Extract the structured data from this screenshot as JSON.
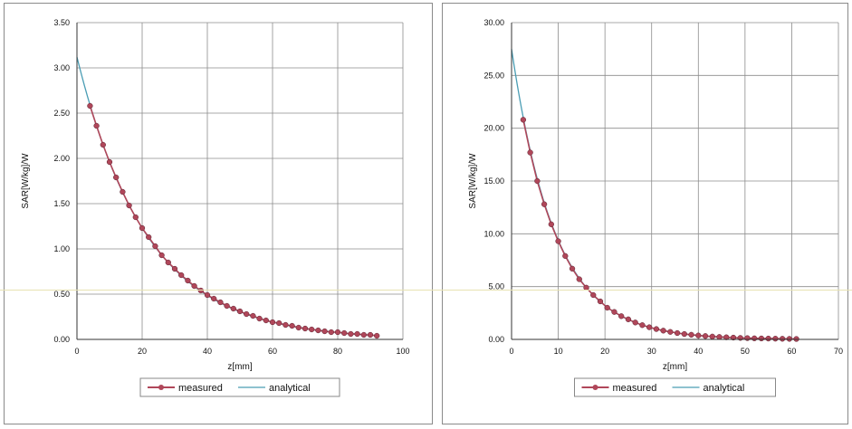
{
  "chart_data": [
    {
      "type": "line",
      "title": "",
      "xlabel": "z[mm]",
      "ylabel": "SAR[W/kg]/W",
      "xlim": [
        0,
        100
      ],
      "ylim": [
        0,
        3.5
      ],
      "x_ticks": [
        "0",
        "20",
        "40",
        "60",
        "80",
        "100"
      ],
      "y_ticks": [
        "0.00",
        "0.50",
        "1.00",
        "1.50",
        "2.00",
        "2.50",
        "3.00",
        "3.50"
      ],
      "grid": true,
      "legend_position": "bottom",
      "analytical": {
        "a": 3.12,
        "k": 0.0465,
        "x_start": 0,
        "x_end": 92
      },
      "series": [
        {
          "name": "measured",
          "color": "#b0475a",
          "marker": "circle",
          "x": [
            4,
            6,
            8,
            10,
            12,
            14,
            16,
            18,
            20,
            22,
            24,
            26,
            28,
            30,
            32,
            34,
            36,
            38,
            40,
            42,
            44,
            46,
            48,
            50,
            52,
            54,
            56,
            58,
            60,
            62,
            64,
            66,
            68,
            70,
            72,
            74,
            76,
            78,
            80,
            82,
            84,
            86,
            88,
            90,
            92
          ],
          "y": [
            2.58,
            2.36,
            2.15,
            1.96,
            1.79,
            1.63,
            1.48,
            1.35,
            1.23,
            1.13,
            1.03,
            0.93,
            0.85,
            0.78,
            0.71,
            0.65,
            0.59,
            0.54,
            0.49,
            0.45,
            0.41,
            0.37,
            0.34,
            0.31,
            0.28,
            0.26,
            0.23,
            0.21,
            0.19,
            0.18,
            0.16,
            0.15,
            0.13,
            0.12,
            0.11,
            0.1,
            0.09,
            0.08,
            0.08,
            0.07,
            0.06,
            0.06,
            0.05,
            0.05,
            0.04
          ]
        },
        {
          "name": "analytical",
          "color": "#4a9db4",
          "marker": "none"
        }
      ]
    },
    {
      "type": "line",
      "title": "",
      "xlabel": "z[mm]",
      "ylabel": "SAR[W/kg]/W",
      "xlim": [
        0,
        70
      ],
      "ylim": [
        0,
        30
      ],
      "x_ticks": [
        "0",
        "10",
        "20",
        "30",
        "40",
        "50",
        "60",
        "70"
      ],
      "y_ticks": [
        "0.00",
        "5.00",
        "10.00",
        "15.00",
        "20.00",
        "25.00",
        "30.00"
      ],
      "grid": true,
      "legend_position": "bottom",
      "analytical": {
        "a": 27.5,
        "k": 0.1075,
        "x_start": 0,
        "x_end": 61
      },
      "series": [
        {
          "name": "measured",
          "color": "#b0475a",
          "marker": "circle",
          "x": [
            2.5,
            4,
            5.5,
            7,
            8.5,
            10,
            11.5,
            13,
            14.5,
            16,
            17.5,
            19,
            20.5,
            22,
            23.5,
            25,
            26.5,
            28,
            29.5,
            31,
            32.5,
            34,
            35.5,
            37,
            38.5,
            40,
            41.5,
            43,
            44.5,
            46,
            47.5,
            49,
            50.5,
            52,
            53.5,
            55,
            56.5,
            58,
            59.5,
            61
          ],
          "y": [
            20.8,
            17.7,
            15.0,
            12.8,
            10.9,
            9.3,
            7.9,
            6.7,
            5.7,
            4.9,
            4.2,
            3.6,
            3.0,
            2.6,
            2.2,
            1.9,
            1.6,
            1.35,
            1.15,
            0.98,
            0.83,
            0.71,
            0.6,
            0.51,
            0.44,
            0.37,
            0.32,
            0.27,
            0.23,
            0.2,
            0.17,
            0.14,
            0.12,
            0.1,
            0.09,
            0.08,
            0.07,
            0.06,
            0.05,
            0.04
          ]
        },
        {
          "name": "analytical",
          "color": "#4a9db4",
          "marker": "none"
        }
      ]
    }
  ]
}
